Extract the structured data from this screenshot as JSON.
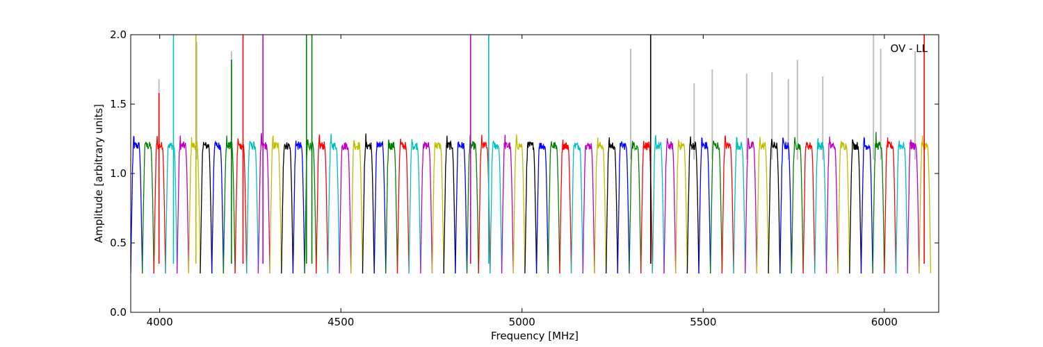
{
  "chart_data": {
    "type": "line",
    "title": "",
    "annotation": "OV - LL",
    "xlabel": "Frequency [MHz]",
    "ylabel": "Amplitude [arbitrary units]",
    "xlim": [
      3920,
      6150
    ],
    "ylim": [
      0.0,
      2.0
    ],
    "xticks": [
      4000,
      4500,
      5000,
      5500,
      6000
    ],
    "yticks": [
      0.0,
      0.5,
      1.0,
      1.5,
      2.0
    ],
    "xtick_labels": [
      "4000",
      "4500",
      "5000",
      "5500",
      "6000"
    ],
    "ytick_labels": [
      "0.0",
      "0.5",
      "1.0",
      "1.5",
      "2.0"
    ],
    "grid": false,
    "legend": "none",
    "colors": {
      "raw": "#bfbfbf",
      "cycle": [
        "#0000ff",
        "#008000",
        "#ff0000",
        "#00bfbf",
        "#bf00bf",
        "#bfbf00",
        "#000000"
      ]
    },
    "channel_width_mhz": 32,
    "channel_count": 69,
    "start_frequency_mhz": 3920,
    "typical_band_level": 1.2,
    "band_edge_minimum": 0.28,
    "strong_spikes": [
      {
        "x": 3998,
        "y": 1.58,
        "color": "#ff0000"
      },
      {
        "x": 4038,
        "y": 2.0,
        "color": "#00bfbf"
      },
      {
        "x": 4100,
        "y": 2.0,
        "color": "#bfbf00"
      },
      {
        "x": 4198,
        "y": 1.82,
        "color": "#008000"
      },
      {
        "x": 4230,
        "y": 2.0,
        "color": "#ff0000"
      },
      {
        "x": 4285,
        "y": 2.0,
        "color": "#bf00bf"
      },
      {
        "x": 4405,
        "y": 2.0,
        "color": "#008000"
      },
      {
        "x": 4420,
        "y": 2.0,
        "color": "#008000"
      },
      {
        "x": 4858,
        "y": 2.0,
        "color": "#bf00bf"
      },
      {
        "x": 4908,
        "y": 2.0,
        "color": "#00bfbf"
      },
      {
        "x": 5355,
        "y": 2.0,
        "color": "#000000"
      },
      {
        "x": 6110,
        "y": 2.0,
        "color": "#ff0000"
      }
    ],
    "gray_spike_regions": [
      {
        "x": 3998,
        "y": 1.68
      },
      {
        "x": 4102,
        "y": 1.95
      },
      {
        "x": 4198,
        "y": 1.88
      },
      {
        "x": 5300,
        "y": 1.9
      },
      {
        "x": 5475,
        "y": 1.65
      },
      {
        "x": 5525,
        "y": 1.75
      },
      {
        "x": 5620,
        "y": 1.72
      },
      {
        "x": 5690,
        "y": 1.73
      },
      {
        "x": 5735,
        "y": 1.68
      },
      {
        "x": 5760,
        "y": 1.82
      },
      {
        "x": 5830,
        "y": 1.7
      },
      {
        "x": 5970,
        "y": 2.0
      },
      {
        "x": 5990,
        "y": 1.9
      },
      {
        "x": 6085,
        "y": 1.88
      }
    ]
  }
}
